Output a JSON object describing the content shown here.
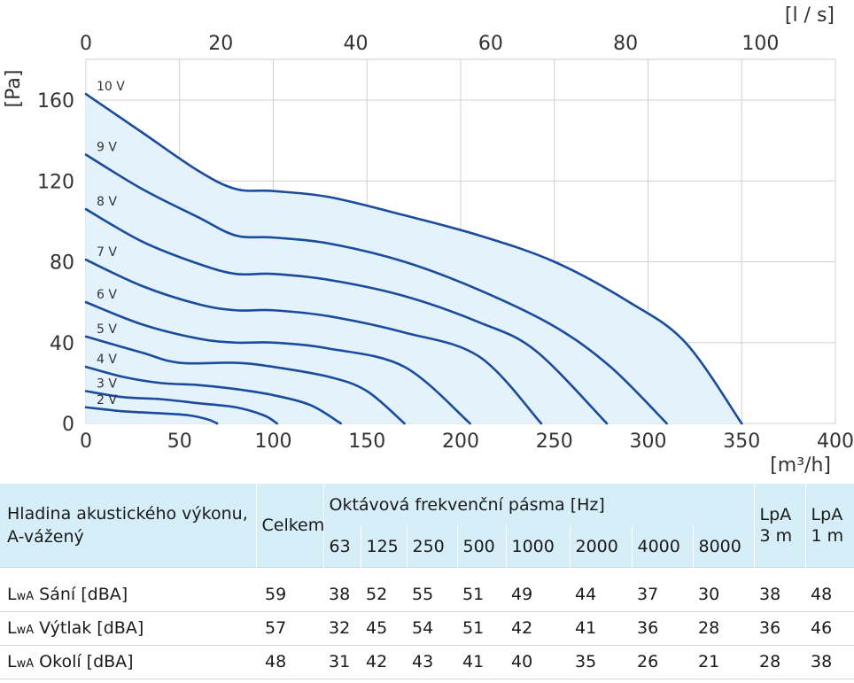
{
  "chart_data": {
    "type": "line",
    "xlabel": "[m³/h]",
    "x2label": "[l / s]",
    "ylabel": "[Pa]",
    "xlim": [
      0,
      400
    ],
    "x2lim": [
      0,
      111.111
    ],
    "ylim": [
      0,
      180
    ],
    "xticks": [
      "0",
      "50",
      "100",
      "150",
      "200",
      "250",
      "300",
      "350",
      "400"
    ],
    "x2ticks": [
      "0",
      "20",
      "40",
      "60",
      "80",
      "100"
    ],
    "yticks": [
      "0",
      "40",
      "80",
      "120",
      "160"
    ],
    "grid": true,
    "fill_color": "#e3f2fb",
    "line_color": "#1a4b9c",
    "series": [
      {
        "name": "10 V",
        "x": [
          0,
          30,
          60,
          80,
          100,
          130,
          170,
          210,
          250,
          290,
          320,
          350
        ],
        "y": [
          163,
          144,
          125,
          116,
          115,
          112,
          103,
          93,
          80,
          60,
          40,
          0
        ]
      },
      {
        "name": "9 V",
        "x": [
          0,
          30,
          60,
          80,
          100,
          130,
          170,
          210,
          250,
          280,
          310
        ],
        "y": [
          133,
          116,
          102,
          93,
          92,
          89,
          80,
          66,
          48,
          28,
          0
        ]
      },
      {
        "name": "8 V",
        "x": [
          0,
          30,
          60,
          80,
          100,
          130,
          170,
          210,
          240,
          278
        ],
        "y": [
          106,
          90,
          79,
          74,
          74,
          71,
          63,
          50,
          36,
          0
        ]
      },
      {
        "name": "7 V",
        "x": [
          0,
          30,
          60,
          80,
          100,
          130,
          170,
          210,
          243
        ],
        "y": [
          81,
          68,
          59,
          56,
          56,
          53,
          45,
          33,
          0
        ]
      },
      {
        "name": "6 V",
        "x": [
          0,
          30,
          60,
          80,
          100,
          130,
          170,
          205
        ],
        "y": [
          60,
          49,
          42,
          40,
          40,
          37,
          28,
          0
        ]
      },
      {
        "name": "5 V",
        "x": [
          0,
          30,
          50,
          80,
          100,
          130,
          150,
          170
        ],
        "y": [
          43,
          35,
          30,
          30,
          28,
          23,
          16,
          0
        ]
      },
      {
        "name": "4 V",
        "x": [
          0,
          20,
          40,
          60,
          80,
          100,
          120,
          136
        ],
        "y": [
          28,
          23,
          20,
          19,
          17,
          14,
          9,
          0
        ]
      },
      {
        "name": "3 V",
        "x": [
          0,
          20,
          40,
          60,
          80,
          95,
          102
        ],
        "y": [
          16,
          13,
          12,
          10,
          8,
          4,
          0
        ]
      },
      {
        "name": "2 V",
        "x": [
          0,
          20,
          40,
          55,
          65,
          70
        ],
        "y": [
          8,
          6,
          5,
          4,
          2,
          0
        ]
      }
    ]
  },
  "table": {
    "header": {
      "row_label": "Hladina akustického výkonu, A-vážený",
      "total": "Celkem",
      "octave": "Oktávová frekvenční pásma [Hz]",
      "bands": [
        "63",
        "125",
        "250",
        "500",
        "1000",
        "2000",
        "4000",
        "8000"
      ],
      "lpa3_a": "LpA",
      "lpa3_b": "3 m",
      "lpa1_a": "LpA",
      "lpa1_b": "1 m"
    },
    "rows": [
      {
        "lw": "L",
        "sub": "wA",
        "name": "Sání [dBA]",
        "values": [
          "59",
          "38",
          "52",
          "55",
          "51",
          "49",
          "44",
          "37",
          "30",
          "38",
          "48"
        ]
      },
      {
        "lw": "L",
        "sub": "wA",
        "name": "Výtlak [dBA]",
        "values": [
          "57",
          "32",
          "45",
          "54",
          "51",
          "42",
          "41",
          "36",
          "28",
          "36",
          "46"
        ]
      },
      {
        "lw": "L",
        "sub": "wA",
        "name": "Okolí [dBA]",
        "values": [
          "48",
          "31",
          "42",
          "43",
          "41",
          "40",
          "35",
          "26",
          "21",
          "28",
          "38"
        ]
      }
    ]
  }
}
